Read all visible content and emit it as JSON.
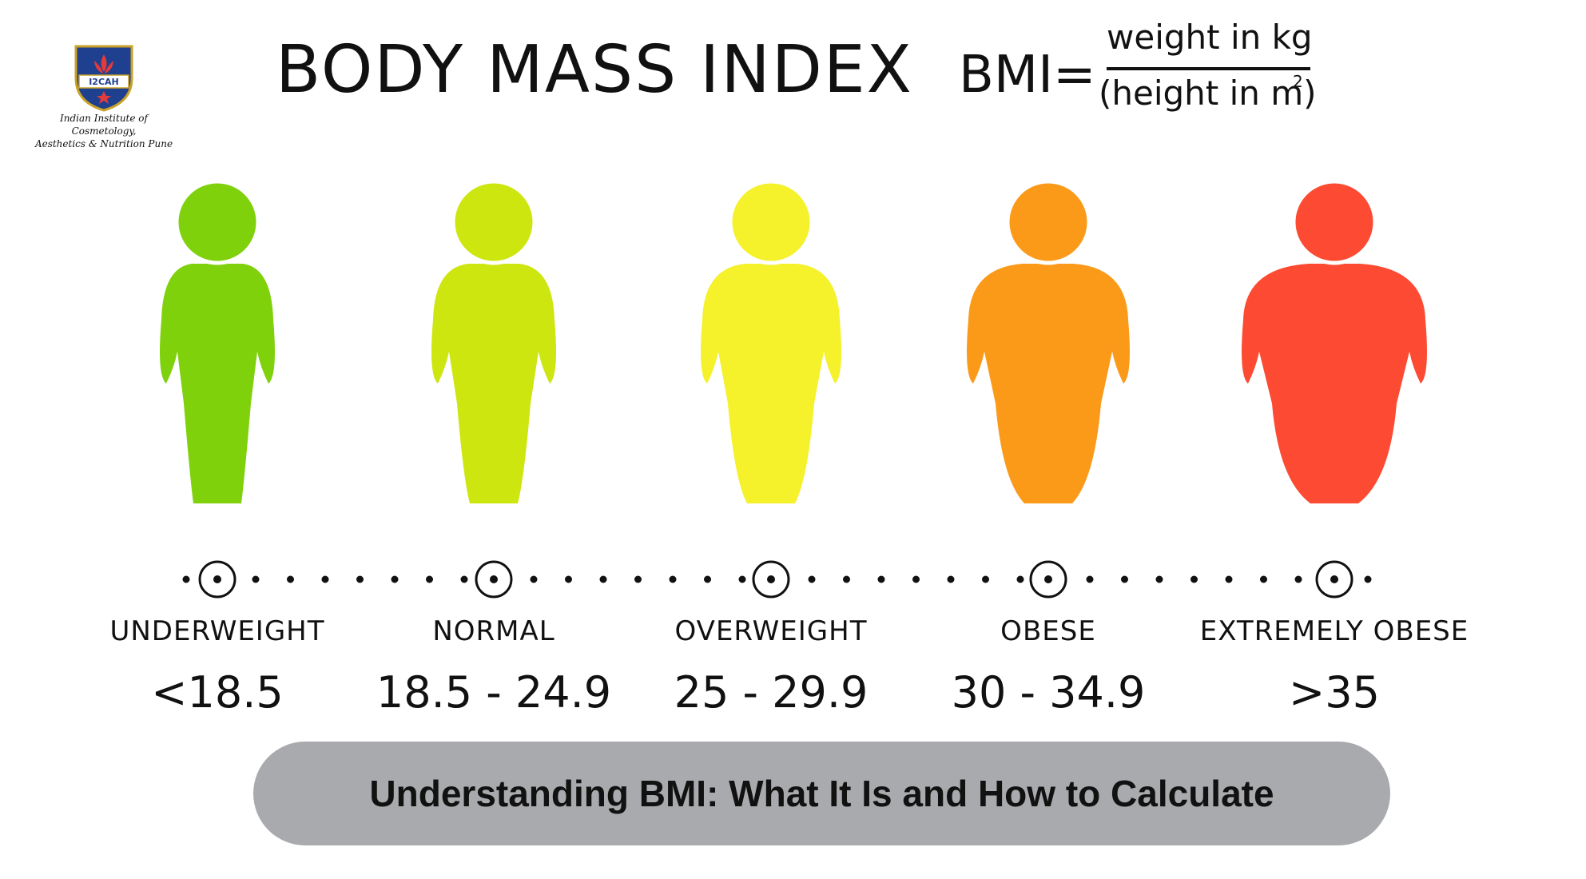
{
  "logo": {
    "badge_text": "I2CAH",
    "line1": "Indian Institute of Cosmetology,",
    "line2": "Aesthetics & Nutrition Pune"
  },
  "title": "BODY MASS INDEX",
  "formula": {
    "lhs": "BMI=",
    "numerator": "weight in kg",
    "denominator": "(height in m)",
    "exponent": "2"
  },
  "categories": [
    {
      "label": "UNDERWEIGHT",
      "range": "<18.5",
      "color": "#7fd10c"
    },
    {
      "label": "NORMAL",
      "range": "18.5 - 24.9",
      "color": "#cde60f"
    },
    {
      "label": "OVERWEIGHT",
      "range": "25 - 29.9",
      "color": "#f5f12a"
    },
    {
      "label": "OBESE",
      "range": "30 - 34.9",
      "color": "#fb9a19"
    },
    {
      "label": "EXTREMELY OBESE",
      "range": ">35",
      "color": "#fc4b32"
    }
  ],
  "caption": "Understanding BMI: What It Is and How to Calculate"
}
